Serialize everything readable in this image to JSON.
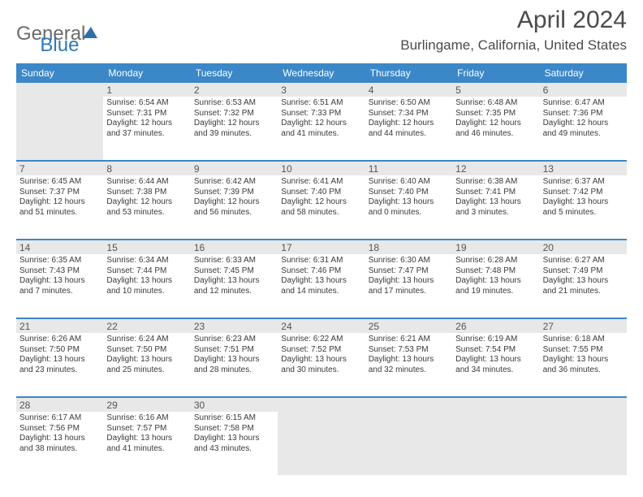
{
  "logo": {
    "part1": "General",
    "part2": "Blue"
  },
  "title": "April 2024",
  "location": "Burlingame, California, United States",
  "colors": {
    "header_bg": "#3b87c8",
    "header_text": "#ffffff",
    "daynum_bg": "#e8e8e8",
    "rule": "#3b87c8",
    "body_text": "#3a3a3a",
    "title_text": "#4b4b4b",
    "logo_gray": "#6b6b6b",
    "logo_blue": "#2f78b8"
  },
  "day_headers": [
    "Sunday",
    "Monday",
    "Tuesday",
    "Wednesday",
    "Thursday",
    "Friday",
    "Saturday"
  ],
  "weeks": [
    {
      "nums": [
        "",
        "1",
        "2",
        "3",
        "4",
        "5",
        "6"
      ],
      "cells": [
        null,
        {
          "sunrise": "Sunrise: 6:54 AM",
          "sunset": "Sunset: 7:31 PM",
          "d1": "Daylight: 12 hours",
          "d2": "and 37 minutes."
        },
        {
          "sunrise": "Sunrise: 6:53 AM",
          "sunset": "Sunset: 7:32 PM",
          "d1": "Daylight: 12 hours",
          "d2": "and 39 minutes."
        },
        {
          "sunrise": "Sunrise: 6:51 AM",
          "sunset": "Sunset: 7:33 PM",
          "d1": "Daylight: 12 hours",
          "d2": "and 41 minutes."
        },
        {
          "sunrise": "Sunrise: 6:50 AM",
          "sunset": "Sunset: 7:34 PM",
          "d1": "Daylight: 12 hours",
          "d2": "and 44 minutes."
        },
        {
          "sunrise": "Sunrise: 6:48 AM",
          "sunset": "Sunset: 7:35 PM",
          "d1": "Daylight: 12 hours",
          "d2": "and 46 minutes."
        },
        {
          "sunrise": "Sunrise: 6:47 AM",
          "sunset": "Sunset: 7:36 PM",
          "d1": "Daylight: 12 hours",
          "d2": "and 49 minutes."
        }
      ]
    },
    {
      "nums": [
        "7",
        "8",
        "9",
        "10",
        "11",
        "12",
        "13"
      ],
      "cells": [
        {
          "sunrise": "Sunrise: 6:45 AM",
          "sunset": "Sunset: 7:37 PM",
          "d1": "Daylight: 12 hours",
          "d2": "and 51 minutes."
        },
        {
          "sunrise": "Sunrise: 6:44 AM",
          "sunset": "Sunset: 7:38 PM",
          "d1": "Daylight: 12 hours",
          "d2": "and 53 minutes."
        },
        {
          "sunrise": "Sunrise: 6:42 AM",
          "sunset": "Sunset: 7:39 PM",
          "d1": "Daylight: 12 hours",
          "d2": "and 56 minutes."
        },
        {
          "sunrise": "Sunrise: 6:41 AM",
          "sunset": "Sunset: 7:40 PM",
          "d1": "Daylight: 12 hours",
          "d2": "and 58 minutes."
        },
        {
          "sunrise": "Sunrise: 6:40 AM",
          "sunset": "Sunset: 7:40 PM",
          "d1": "Daylight: 13 hours",
          "d2": "and 0 minutes."
        },
        {
          "sunrise": "Sunrise: 6:38 AM",
          "sunset": "Sunset: 7:41 PM",
          "d1": "Daylight: 13 hours",
          "d2": "and 3 minutes."
        },
        {
          "sunrise": "Sunrise: 6:37 AM",
          "sunset": "Sunset: 7:42 PM",
          "d1": "Daylight: 13 hours",
          "d2": "and 5 minutes."
        }
      ]
    },
    {
      "nums": [
        "14",
        "15",
        "16",
        "17",
        "18",
        "19",
        "20"
      ],
      "cells": [
        {
          "sunrise": "Sunrise: 6:35 AM",
          "sunset": "Sunset: 7:43 PM",
          "d1": "Daylight: 13 hours",
          "d2": "and 7 minutes."
        },
        {
          "sunrise": "Sunrise: 6:34 AM",
          "sunset": "Sunset: 7:44 PM",
          "d1": "Daylight: 13 hours",
          "d2": "and 10 minutes."
        },
        {
          "sunrise": "Sunrise: 6:33 AM",
          "sunset": "Sunset: 7:45 PM",
          "d1": "Daylight: 13 hours",
          "d2": "and 12 minutes."
        },
        {
          "sunrise": "Sunrise: 6:31 AM",
          "sunset": "Sunset: 7:46 PM",
          "d1": "Daylight: 13 hours",
          "d2": "and 14 minutes."
        },
        {
          "sunrise": "Sunrise: 6:30 AM",
          "sunset": "Sunset: 7:47 PM",
          "d1": "Daylight: 13 hours",
          "d2": "and 17 minutes."
        },
        {
          "sunrise": "Sunrise: 6:28 AM",
          "sunset": "Sunset: 7:48 PM",
          "d1": "Daylight: 13 hours",
          "d2": "and 19 minutes."
        },
        {
          "sunrise": "Sunrise: 6:27 AM",
          "sunset": "Sunset: 7:49 PM",
          "d1": "Daylight: 13 hours",
          "d2": "and 21 minutes."
        }
      ]
    },
    {
      "nums": [
        "21",
        "22",
        "23",
        "24",
        "25",
        "26",
        "27"
      ],
      "cells": [
        {
          "sunrise": "Sunrise: 6:26 AM",
          "sunset": "Sunset: 7:50 PM",
          "d1": "Daylight: 13 hours",
          "d2": "and 23 minutes."
        },
        {
          "sunrise": "Sunrise: 6:24 AM",
          "sunset": "Sunset: 7:50 PM",
          "d1": "Daylight: 13 hours",
          "d2": "and 25 minutes."
        },
        {
          "sunrise": "Sunrise: 6:23 AM",
          "sunset": "Sunset: 7:51 PM",
          "d1": "Daylight: 13 hours",
          "d2": "and 28 minutes."
        },
        {
          "sunrise": "Sunrise: 6:22 AM",
          "sunset": "Sunset: 7:52 PM",
          "d1": "Daylight: 13 hours",
          "d2": "and 30 minutes."
        },
        {
          "sunrise": "Sunrise: 6:21 AM",
          "sunset": "Sunset: 7:53 PM",
          "d1": "Daylight: 13 hours",
          "d2": "and 32 minutes."
        },
        {
          "sunrise": "Sunrise: 6:19 AM",
          "sunset": "Sunset: 7:54 PM",
          "d1": "Daylight: 13 hours",
          "d2": "and 34 minutes."
        },
        {
          "sunrise": "Sunrise: 6:18 AM",
          "sunset": "Sunset: 7:55 PM",
          "d1": "Daylight: 13 hours",
          "d2": "and 36 minutes."
        }
      ]
    },
    {
      "nums": [
        "28",
        "29",
        "30",
        "",
        "",
        "",
        ""
      ],
      "cells": [
        {
          "sunrise": "Sunrise: 6:17 AM",
          "sunset": "Sunset: 7:56 PM",
          "d1": "Daylight: 13 hours",
          "d2": "and 38 minutes."
        },
        {
          "sunrise": "Sunrise: 6:16 AM",
          "sunset": "Sunset: 7:57 PM",
          "d1": "Daylight: 13 hours",
          "d2": "and 41 minutes."
        },
        {
          "sunrise": "Sunrise: 6:15 AM",
          "sunset": "Sunset: 7:58 PM",
          "d1": "Daylight: 13 hours",
          "d2": "and 43 minutes."
        },
        null,
        null,
        null,
        null
      ]
    }
  ]
}
